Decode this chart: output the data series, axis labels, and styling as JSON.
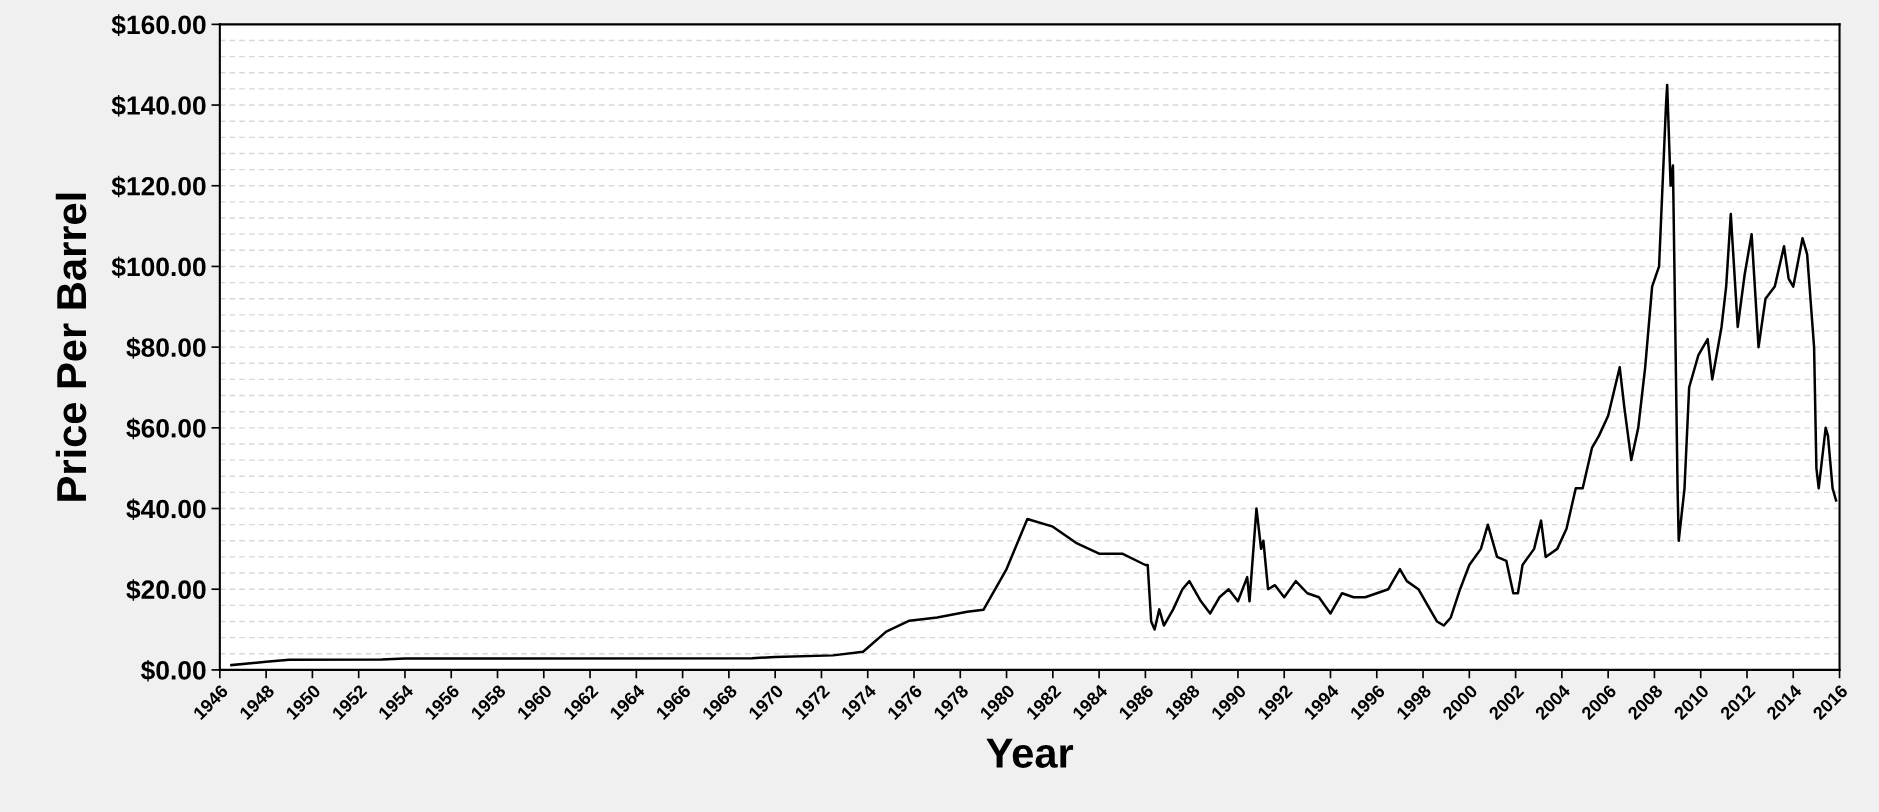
{
  "chart_data": {
    "type": "line",
    "xlabel": "Year",
    "ylabel": "Price Per Barrel",
    "grid": "y",
    "line_style": "solid",
    "marker": "none",
    "xlim": [
      1946,
      2016
    ],
    "xticks": [
      1946,
      1948,
      1950,
      1952,
      1954,
      1956,
      1958,
      1960,
      1962,
      1964,
      1966,
      1968,
      1970,
      1972,
      1974,
      1976,
      1978,
      1980,
      1982,
      1984,
      1986,
      1988,
      1990,
      1992,
      1994,
      1996,
      1998,
      2000,
      2002,
      2004,
      2006,
      2008,
      2010,
      2012,
      2014,
      2016
    ],
    "ylim": [
      0,
      160
    ],
    "yticks": [
      {
        "value": 0,
        "label": "$0.00"
      },
      {
        "value": 20,
        "label": "$20.00"
      },
      {
        "value": 40,
        "label": "$40.00"
      },
      {
        "value": 60,
        "label": "$60.00"
      },
      {
        "value": 80,
        "label": "$80.00"
      },
      {
        "value": 100,
        "label": "$100.00"
      },
      {
        "value": 120,
        "label": "$120.00"
      },
      {
        "value": 140,
        "label": "$140.00"
      },
      {
        "value": 160,
        "label": "$160.00"
      }
    ],
    "series": [
      {
        "color": "#000000",
        "x": [
          1946.5,
          1948,
          1949,
          1953,
          1954,
          1969,
          1970,
          1972.5,
          1973.8,
          1974.8,
          1975.8,
          1977,
          1978.3,
          1979,
          1980,
          1980.9,
          1982,
          1983,
          1984,
          1985,
          1986.0,
          1986.1,
          1986.25,
          1986.4,
          1986.6,
          1986.8,
          1987.2,
          1987.6,
          1987.9,
          1988.4,
          1988.8,
          1989.2,
          1989.6,
          1990.0,
          1990.4,
          1990.5,
          1990.8,
          1991.0,
          1991.1,
          1991.3,
          1991.6,
          1992.0,
          1992.5,
          1993.0,
          1993.5,
          1994.0,
          1994.5,
          1995,
          1995.5,
          1996,
          1996.5,
          1997,
          1997.3,
          1997.8,
          1998.2,
          1998.6,
          1998.9,
          1999.2,
          1999.6,
          2000,
          2000.5,
          2000.8,
          2001.2,
          2001.6,
          2001.9,
          2002.1,
          2002.3,
          2002.8,
          2003.1,
          2003.3,
          2003.8,
          2004.2,
          2004.6,
          2004.9,
          2005.3,
          2005.6,
          2006.0,
          2006.5,
          2006.7,
          2007.0,
          2007.3,
          2007.6,
          2007.9,
          2008.2,
          2008.5,
          2008.55,
          2008.7,
          2008.8,
          2009.0,
          2009.05,
          2009.3,
          2009.5,
          2009.9,
          2010.3,
          2010.5,
          2010.9,
          2011.1,
          2011.3,
          2011.6,
          2011.9,
          2012.2,
          2012.5,
          2012.8,
          2013.2,
          2013.6,
          2013.8,
          2014.0,
          2014.4,
          2014.6,
          2014.9,
          2015.0,
          2015.1,
          2015.4,
          2015.5,
          2015.7,
          2015.85
        ],
        "values": [
          1.2,
          2.0,
          2.5,
          2.6,
          2.8,
          2.9,
          3.2,
          3.6,
          4.5,
          9.5,
          12.2,
          13,
          14.4,
          14.9,
          25,
          37.4,
          35.5,
          31.5,
          28.8,
          28.8,
          26,
          26,
          12,
          10,
          15,
          11,
          15,
          20,
          22,
          17,
          14,
          18,
          20,
          17,
          23,
          17,
          40,
          30,
          32,
          20,
          21,
          18,
          22,
          19,
          18,
          14,
          19,
          18,
          18,
          19,
          20,
          25,
          22,
          20,
          16,
          12,
          11,
          13,
          20,
          26,
          30,
          36,
          28,
          27,
          19,
          19,
          26,
          30,
          37,
          28,
          30,
          35,
          45,
          45,
          55,
          58,
          63,
          75,
          65,
          52,
          60,
          75,
          95,
          100,
          140,
          145,
          120,
          125,
          45,
          32,
          45,
          70,
          78,
          82,
          72,
          85,
          95,
          113,
          85,
          98,
          108,
          80,
          92,
          95,
          105,
          97,
          95,
          107,
          103,
          80,
          50,
          45,
          60,
          58,
          45,
          42
        ]
      }
    ]
  }
}
